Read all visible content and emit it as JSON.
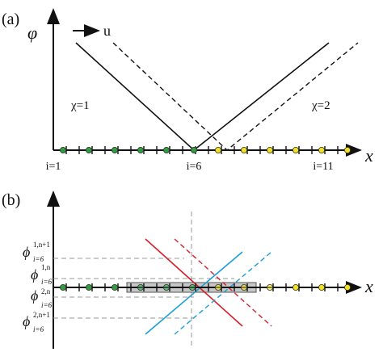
{
  "panel_a": {
    "label": "(a)",
    "y_axis_symbol": "φ",
    "x_axis_symbol": "x",
    "arrow_label": "u",
    "chi_left": "χ=1",
    "chi_right": "χ=2",
    "node_labels": {
      "first": "i=1",
      "middle": "i=6",
      "last": "i=11"
    }
  },
  "panel_b": {
    "label": "(b)",
    "x_axis_symbol": "x",
    "phi_labels": [
      {
        "base": "ϕ",
        "sup": "1,n+1",
        "sub": "i=6"
      },
      {
        "base": "ϕ",
        "sup": "1,n",
        "sub": "i=6"
      },
      {
        "base": "ϕ",
        "sup": "2,n",
        "sub": "i=6"
      },
      {
        "base": "ϕ",
        "sup": "2,n+1",
        "sub": "i=6"
      }
    ]
  },
  "colors": {
    "axis": "#111111",
    "green_node": "#2e9e3f",
    "yellow_node": "#f2e21a",
    "red_line": "#d61f2b",
    "blue_line": "#1a9fd8",
    "gray_guide": "#9a9a9a",
    "highlight_box": "#bdbdbd"
  }
}
